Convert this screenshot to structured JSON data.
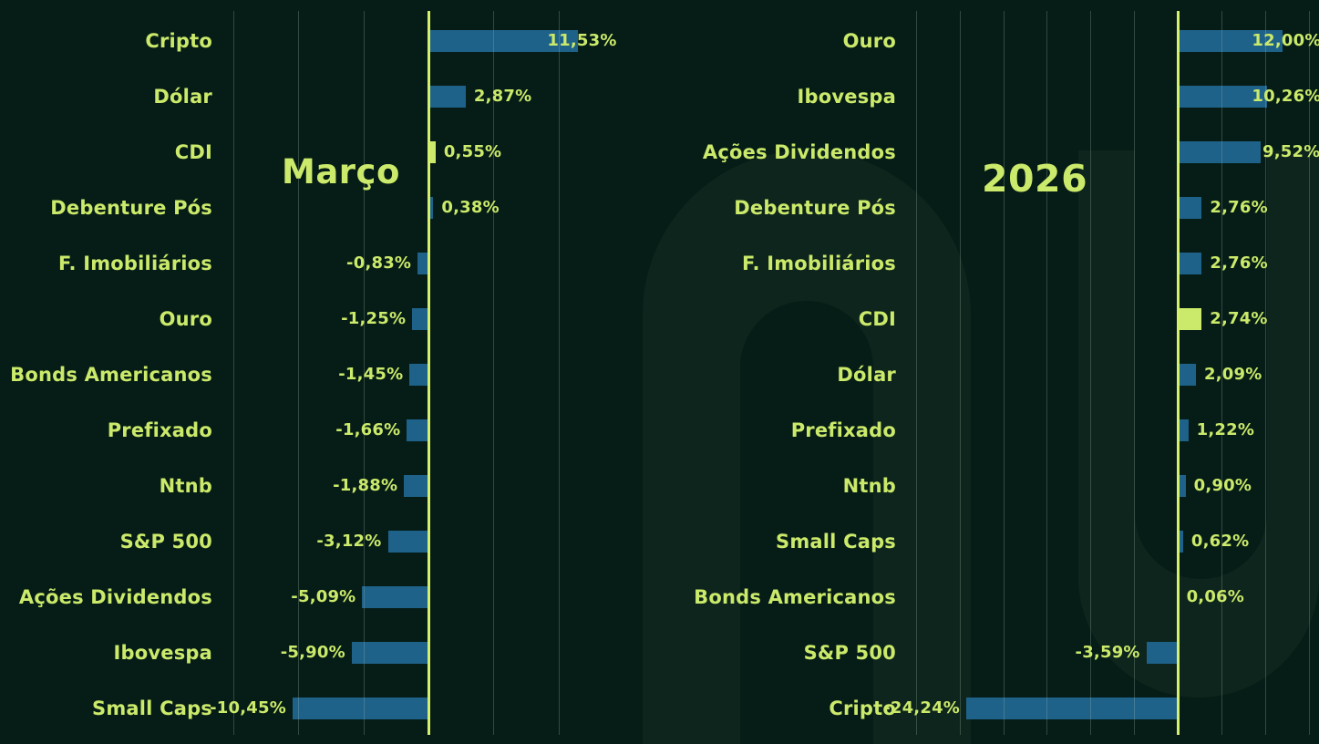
{
  "colors": {
    "background": "#051d16",
    "accent_green": "#cbe96a",
    "zero_line_green": "#d6f06e",
    "bar_blue": "#1e6189",
    "highlight_bar_green": "#cbe96a"
  },
  "watermark_icon": "letterform-monogram",
  "chart_data": [
    {
      "type": "bar",
      "orientation": "horizontal",
      "title": "Março",
      "value_unit": "%",
      "decimal_style": "comma",
      "grid": true,
      "gridlines_pct": [
        -15,
        -10,
        -5,
        0,
        5,
        10
      ],
      "xlim": [
        -15,
        12.4
      ],
      "legend_position": "none",
      "highlight_category": "CDI",
      "rows": [
        {
          "category": "Cripto",
          "value": 11.53,
          "label": "11,53%"
        },
        {
          "category": "Dólar",
          "value": 2.87,
          "label": "2,87%"
        },
        {
          "category": "CDI",
          "value": 0.55,
          "label": "0,55%",
          "highlight": true
        },
        {
          "category": "Debenture Pós",
          "value": 0.38,
          "label": "0,38%"
        },
        {
          "category": "F. Imobiliários",
          "value": -0.83,
          "label": "-0,83%"
        },
        {
          "category": "Ouro",
          "value": -1.25,
          "label": "-1,25%"
        },
        {
          "category": "Bonds Americanos",
          "value": -1.45,
          "label": "-1,45%"
        },
        {
          "category": "Prefixado",
          "value": -1.66,
          "label": "-1,66%"
        },
        {
          "category": "Ntnb",
          "value": -1.88,
          "label": "-1,88%"
        },
        {
          "category": "S&P 500",
          "value": -3.12,
          "label": "-3,12%"
        },
        {
          "category": "Ações Dividendos",
          "value": -5.09,
          "label": "-5,09%"
        },
        {
          "category": "Ibovespa",
          "value": -5.9,
          "label": "-5,90%"
        },
        {
          "category": "Small Caps",
          "value": -10.45,
          "label": "-10,45%"
        }
      ]
    },
    {
      "type": "bar",
      "orientation": "horizontal",
      "title": "2026",
      "value_unit": "%",
      "decimal_style": "comma",
      "grid": true,
      "gridlines_pct": [
        -30,
        -25,
        -20,
        -15,
        -10,
        -5,
        0,
        5,
        10,
        15
      ],
      "xlim": [
        -30,
        16
      ],
      "legend_position": "none",
      "highlight_category": "CDI",
      "rows": [
        {
          "category": "Ouro",
          "value": 12.0,
          "label": "12,00%"
        },
        {
          "category": "Ibovespa",
          "value": 10.26,
          "label": "10,26%"
        },
        {
          "category": "Ações Dividendos",
          "value": 9.52,
          "label": "9,52%"
        },
        {
          "category": "Debenture Pós",
          "value": 2.76,
          "label": "2,76%"
        },
        {
          "category": "F. Imobiliários",
          "value": 2.76,
          "label": "2,76%"
        },
        {
          "category": "CDI",
          "value": 2.74,
          "label": "2,74%",
          "highlight": true
        },
        {
          "category": "Dólar",
          "value": 2.09,
          "label": "2,09%"
        },
        {
          "category": "Prefixado",
          "value": 1.22,
          "label": "1,22%"
        },
        {
          "category": "Ntnb",
          "value": 0.9,
          "label": "0,90%"
        },
        {
          "category": "Small Caps",
          "value": 0.62,
          "label": "0,62%"
        },
        {
          "category": "Bonds Americanos",
          "value": 0.06,
          "label": "0,06%"
        },
        {
          "category": "S&P 500",
          "value": -3.59,
          "label": "-3,59%"
        },
        {
          "category": "Cripto",
          "value": -24.24,
          "label": "-24,24%"
        }
      ]
    }
  ]
}
